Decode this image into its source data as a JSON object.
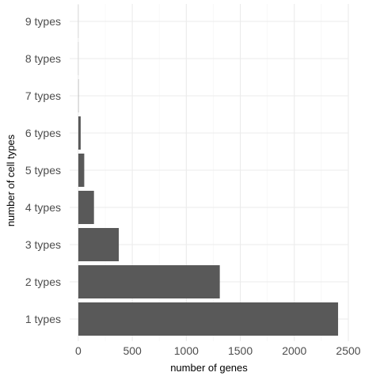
{
  "chart_data": {
    "type": "bar",
    "orientation": "horizontal",
    "categories": [
      "1 types",
      "2 types",
      "3 types",
      "4 types",
      "5 types",
      "6 types",
      "7 types",
      "8 types",
      "9 types"
    ],
    "values": [
      2405,
      1310,
      375,
      145,
      55,
      22,
      2,
      1,
      1
    ],
    "xlabel": "number of genes",
    "ylabel": "number of cell types",
    "xlim": [
      -80,
      2500
    ],
    "x_ticks": [
      "0",
      "500",
      "1000",
      "1500",
      "2000",
      "2500"
    ],
    "x_tick_values": [
      0,
      500,
      1000,
      1500,
      2000,
      2500
    ],
    "bar_color": "#595959",
    "grid": true
  }
}
